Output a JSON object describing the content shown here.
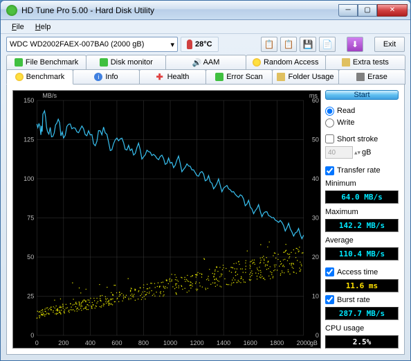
{
  "window": {
    "title": "HD Tune Pro 5.00 - Hard Disk Utility"
  },
  "menu": {
    "file": "File",
    "help": "Help"
  },
  "drive": {
    "selected": "WDC WD2002FAEX-007BA0 (2000 gB)"
  },
  "temperature": {
    "value": "28°C"
  },
  "buttons": {
    "exit": "Exit",
    "start": "Start"
  },
  "tabs_top": {
    "file_bench": "File Benchmark",
    "disk_mon": "Disk monitor",
    "aam": "AAM",
    "random": "Random Access",
    "extra": "Extra tests"
  },
  "tabs_bottom": {
    "benchmark": "Benchmark",
    "info": "Info",
    "health": "Health",
    "error": "Error Scan",
    "folder": "Folder Usage",
    "erase": "Erase"
  },
  "chart": {
    "left_unit": "MB/s",
    "right_unit": "ms",
    "x_unit": "gB",
    "left_ticks": [
      0,
      25,
      50,
      75,
      100,
      125,
      150
    ],
    "right_ticks": [
      0,
      10,
      20,
      30,
      40,
      50,
      60
    ],
    "x_ticks": [
      0,
      200,
      400,
      600,
      800,
      1000,
      1200,
      1400,
      1600,
      1800,
      2000
    ],
    "bg": "#000000",
    "grid_color": "#3a3a3a",
    "transfer_color": "#38c0f0",
    "access_color": "#e0e000",
    "transfer_data": [
      [
        0,
        135
      ],
      [
        30,
        128
      ],
      [
        50,
        142
      ],
      [
        80,
        130
      ],
      [
        120,
        127
      ],
      [
        160,
        138
      ],
      [
        200,
        126
      ],
      [
        250,
        135
      ],
      [
        300,
        130
      ],
      [
        350,
        132
      ],
      [
        400,
        128
      ],
      [
        450,
        124
      ],
      [
        500,
        133
      ],
      [
        550,
        118
      ],
      [
        600,
        126
      ],
      [
        650,
        123
      ],
      [
        700,
        118
      ],
      [
        750,
        120
      ],
      [
        800,
        114
      ],
      [
        850,
        117
      ],
      [
        900,
        113
      ],
      [
        950,
        113
      ],
      [
        1000,
        110
      ],
      [
        1050,
        112
      ],
      [
        1100,
        106
      ],
      [
        1150,
        108
      ],
      [
        1200,
        102
      ],
      [
        1250,
        103
      ],
      [
        1300,
        98
      ],
      [
        1350,
        97
      ],
      [
        1400,
        94
      ],
      [
        1450,
        93
      ],
      [
        1500,
        89
      ],
      [
        1550,
        87
      ],
      [
        1600,
        82
      ],
      [
        1650,
        81
      ],
      [
        1700,
        78
      ],
      [
        1750,
        76
      ],
      [
        1800,
        73
      ],
      [
        1850,
        70
      ],
      [
        1900,
        68
      ],
      [
        1950,
        66
      ],
      [
        2000,
        64
      ]
    ]
  },
  "options": {
    "read": "Read",
    "write": "Write",
    "short_stroke": "Short stroke",
    "stroke_val": "40",
    "stroke_unit": "gB",
    "transfer_rate": "Transfer rate",
    "access_time": "Access time",
    "burst_rate": "Burst rate"
  },
  "stats": {
    "minimum_label": "Minimum",
    "minimum": "64.0 MB/s",
    "maximum_label": "Maximum",
    "maximum": "142.2 MB/s",
    "average_label": "Average",
    "average": "110.4 MB/s",
    "access": "11.6 ms",
    "burst": "287.7 MB/s",
    "cpu_label": "CPU usage",
    "cpu": "2.5%"
  }
}
